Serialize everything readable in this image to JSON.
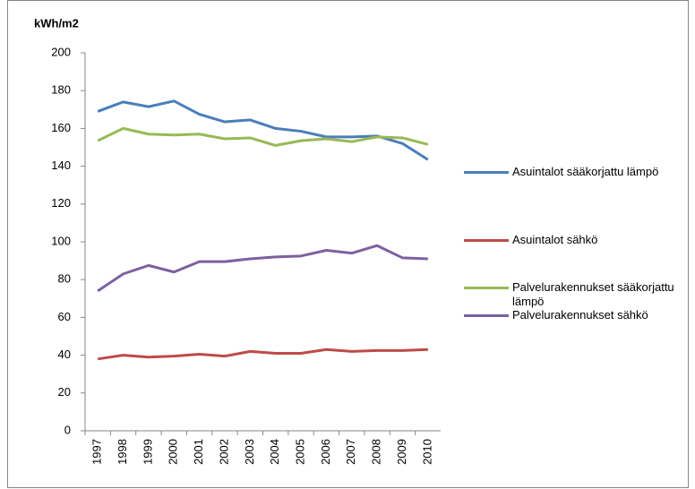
{
  "chart_data": {
    "type": "line",
    "y_label": "kWh/m2",
    "categories": [
      "1997",
      "1998",
      "1999",
      "2000",
      "2001",
      "2002",
      "2003",
      "2004",
      "2005",
      "2006",
      "2007",
      "2008",
      "2009",
      "2010"
    ],
    "series": [
      {
        "name": "Asuintalot sääkorjattu lämpö",
        "color": "#4a7ebb",
        "values": [
          169,
          174,
          171.5,
          174.5,
          167.5,
          163.5,
          164.5,
          160,
          158.5,
          155.5,
          155.5,
          156,
          152,
          143.5
        ]
      },
      {
        "name": "Asuintalot sähkö",
        "color": "#be4b48",
        "values": [
          38,
          40,
          39,
          39.5,
          40.5,
          39.5,
          42,
          41,
          41,
          43,
          42,
          42.5,
          42.5,
          43
        ]
      },
      {
        "name": "Palvelurakennukset sääkorjattu lämpö",
        "color": "#98b954",
        "values": [
          153.5,
          160,
          157,
          156.5,
          157,
          154.5,
          155,
          151,
          153.5,
          154.5,
          153,
          155.5,
          155,
          151.5
        ]
      },
      {
        "name": "Palvelurakennukset sähkö",
        "color": "#7d60a0",
        "values": [
          74,
          83,
          87.5,
          84,
          89.5,
          89.5,
          91,
          92,
          92.5,
          95.5,
          94,
          98,
          91.5,
          91
        ]
      }
    ],
    "ylim": [
      0,
      200
    ],
    "yticks": [
      0,
      20,
      40,
      60,
      80,
      100,
      120,
      140,
      160,
      180,
      200
    ],
    "grid": false,
    "legend": "right"
  }
}
